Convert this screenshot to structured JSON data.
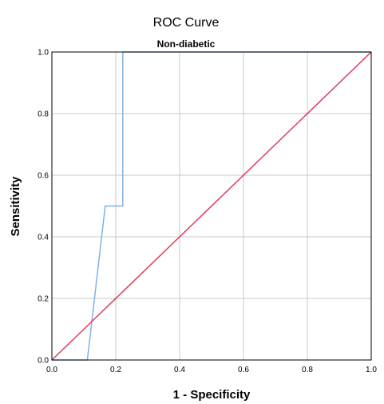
{
  "chart_data": {
    "type": "line",
    "title": "ROC Curve",
    "subtitle": "Non-diabetic",
    "xlabel": "1 - Specificity",
    "ylabel": "Sensitivity",
    "xlim": [
      0,
      1
    ],
    "ylim": [
      0,
      1
    ],
    "xticks": [
      "0.0",
      "0.2",
      "0.4",
      "0.6",
      "0.8",
      "1.0"
    ],
    "yticks": [
      "0.0",
      "0.2",
      "0.4",
      "0.6",
      "0.8",
      "1.0"
    ],
    "grid": true,
    "series": [
      {
        "color": "#7fb2e5",
        "x": [
          0.0,
          0.111,
          0.167,
          0.222,
          0.222,
          1.0
        ],
        "y": [
          0.0,
          0.0,
          0.5,
          0.5,
          1.0,
          1.0
        ]
      },
      {
        "color": "#e0385a",
        "x": [
          0.0,
          1.0
        ],
        "y": [
          0.0,
          1.0
        ]
      }
    ]
  }
}
